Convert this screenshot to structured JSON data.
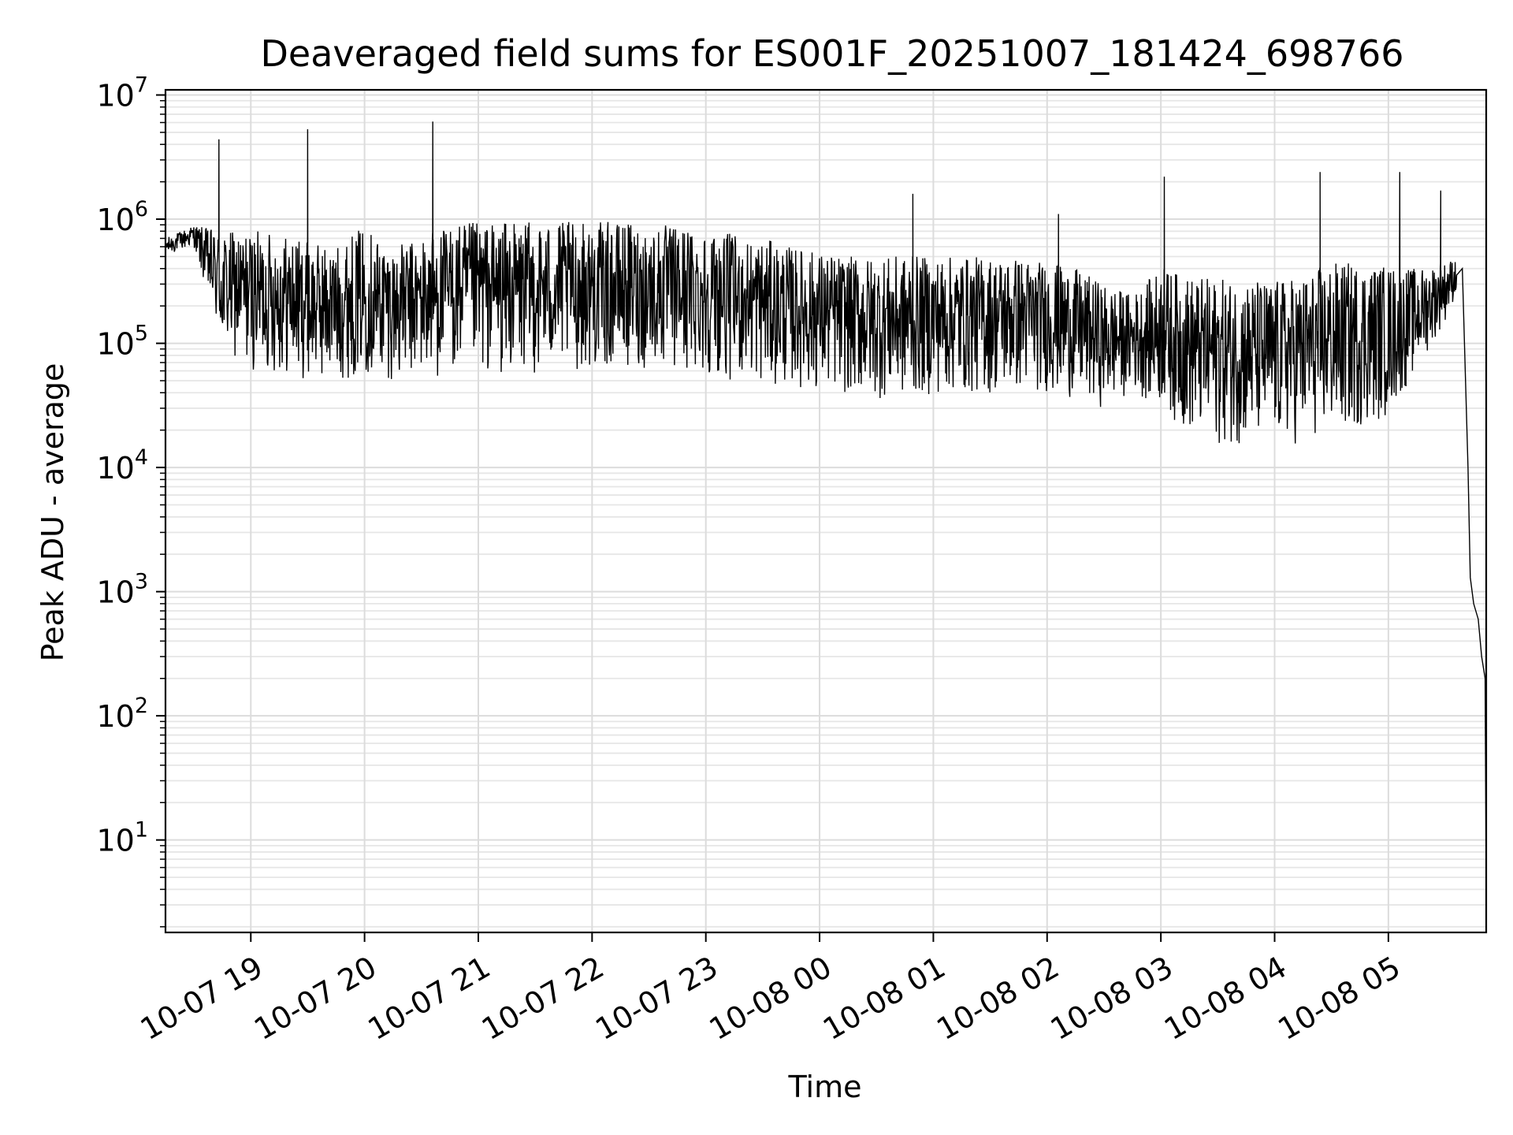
{
  "chart_data": {
    "type": "line",
    "title": "Deaveraged field sums for ES001F_20251007_181424_698766",
    "xlabel": "Time",
    "ylabel": "Peak ADU - average",
    "yscale": "log",
    "ylim": [
      1.8,
      11000000
    ],
    "xlim_hours": [
      -0.75,
      10.86
    ],
    "grid": true,
    "x_tick_labels": [
      "10-07 19",
      "10-07 20",
      "10-07 21",
      "10-07 22",
      "10-07 23",
      "10-08 00",
      "10-08 01",
      "10-08 02",
      "10-08 03",
      "10-08 04",
      "10-08 05"
    ],
    "x_tick_hours": [
      0,
      1,
      2,
      3,
      4,
      5,
      6,
      7,
      8,
      9,
      10
    ],
    "y_ticks": [
      {
        "value": 10,
        "base": "10",
        "exp": "1"
      },
      {
        "value": 100,
        "base": "10",
        "exp": "2"
      },
      {
        "value": 1000,
        "base": "10",
        "exp": "3"
      },
      {
        "value": 10000,
        "base": "10",
        "exp": "4"
      },
      {
        "value": 100000,
        "base": "10",
        "exp": "5"
      },
      {
        "value": 1000000,
        "base": "10",
        "exp": "6"
      },
      {
        "value": 10000000,
        "base": "10",
        "exp": "7"
      }
    ],
    "series": [
      {
        "name": "field sums",
        "color": "#000000",
        "envelope_hours": [
          -0.75,
          -0.5,
          -0.25,
          0.0,
          0.25,
          0.5,
          0.75,
          1.0,
          1.25,
          1.5,
          1.75,
          2.0,
          2.25,
          2.5,
          2.75,
          3.0,
          3.25,
          3.5,
          3.75,
          4.0,
          4.25,
          4.5,
          4.75,
          5.0,
          5.25,
          5.5,
          5.75,
          6.0,
          6.25,
          6.5,
          6.75,
          7.0,
          7.25,
          7.5,
          7.75,
          8.0,
          8.25,
          8.5,
          8.75,
          9.0,
          9.25,
          9.5,
          9.75,
          10.0,
          10.25,
          10.5,
          10.6
        ],
        "envelope_low": [
          500000,
          600000,
          80000,
          60000,
          55000,
          50000,
          50000,
          55000,
          50000,
          50000,
          55000,
          55000,
          55000,
          55000,
          60000,
          60000,
          60000,
          60000,
          55000,
          55000,
          50000,
          45000,
          45000,
          40000,
          38000,
          35000,
          35000,
          38000,
          38000,
          38000,
          40000,
          40000,
          35000,
          30000,
          40000,
          30000,
          18000,
          15000,
          15000,
          15000,
          15000,
          18000,
          20000,
          25000,
          60000,
          150000,
          250000
        ],
        "envelope_high": [
          700000,
          900000,
          800000,
          800000,
          800000,
          650000,
          600000,
          900000,
          600000,
          700000,
          900000,
          950000,
          950000,
          950000,
          950000,
          950000,
          950000,
          900000,
          900000,
          850000,
          750000,
          700000,
          600000,
          550000,
          500000,
          500000,
          500000,
          500000,
          500000,
          500000,
          500000,
          450000,
          400000,
          300000,
          250000,
          400000,
          350000,
          330000,
          330000,
          320000,
          350000,
          450000,
          450000,
          430000,
          400000,
          450000,
          500000
        ],
        "spikes": [
          {
            "hour": -0.28,
            "value": 4400000
          },
          {
            "hour": 0.5,
            "value": 5300000
          },
          {
            "hour": 1.6,
            "value": 6100000
          },
          {
            "hour": 5.82,
            "value": 1600000
          },
          {
            "hour": 7.1,
            "value": 1100000
          },
          {
            "hour": 8.03,
            "value": 2200000
          },
          {
            "hour": 9.4,
            "value": 2400000
          },
          {
            "hour": 10.1,
            "value": 2400000
          },
          {
            "hour": 10.46,
            "value": 1700000
          }
        ],
        "tail": [
          {
            "hour": 10.65,
            "value": 400000
          },
          {
            "hour": 10.7,
            "value": 10000
          },
          {
            "hour": 10.72,
            "value": 1300
          },
          {
            "hour": 10.75,
            "value": 800
          },
          {
            "hour": 10.79,
            "value": 600
          },
          {
            "hour": 10.82,
            "value": 300
          },
          {
            "hour": 10.85,
            "value": 200
          },
          {
            "hour": 10.86,
            "value": 4
          }
        ]
      }
    ]
  }
}
